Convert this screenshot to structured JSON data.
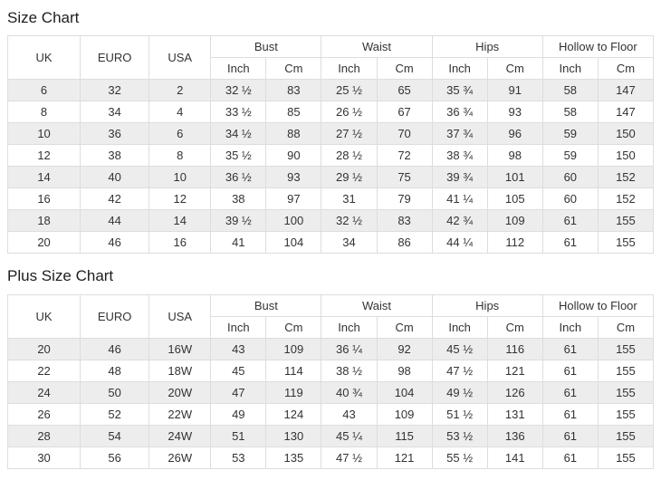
{
  "colors": {
    "stripe_row": "#ededed",
    "border": "#dddddd",
    "text": "#333333",
    "title_text": "#1d1d1d"
  },
  "headers": {
    "uk": "UK",
    "euro": "EURO",
    "usa": "USA",
    "groups": [
      "Bust",
      "Waist",
      "Hips",
      "Hollow to Floor"
    ],
    "units": [
      "Inch",
      "Cm"
    ]
  },
  "size_chart": {
    "title": "Size Chart",
    "rows": [
      [
        "6",
        "32",
        "2",
        "32 ½",
        "83",
        "25 ½",
        "65",
        "35 ¾",
        "91",
        "58",
        "147"
      ],
      [
        "8",
        "34",
        "4",
        "33 ½",
        "85",
        "26 ½",
        "67",
        "36 ¾",
        "93",
        "58",
        "147"
      ],
      [
        "10",
        "36",
        "6",
        "34 ½",
        "88",
        "27 ½",
        "70",
        "37 ¾",
        "96",
        "59",
        "150"
      ],
      [
        "12",
        "38",
        "8",
        "35 ½",
        "90",
        "28 ½",
        "72",
        "38 ¾",
        "98",
        "59",
        "150"
      ],
      [
        "14",
        "40",
        "10",
        "36 ½",
        "93",
        "29 ½",
        "75",
        "39 ¾",
        "101",
        "60",
        "152"
      ],
      [
        "16",
        "42",
        "12",
        "38",
        "97",
        "31",
        "79",
        "41 ¼",
        "105",
        "60",
        "152"
      ],
      [
        "18",
        "44",
        "14",
        "39 ½",
        "100",
        "32 ½",
        "83",
        "42 ¾",
        "109",
        "61",
        "155"
      ],
      [
        "20",
        "46",
        "16",
        "41",
        "104",
        "34",
        "86",
        "44 ¼",
        "112",
        "61",
        "155"
      ]
    ]
  },
  "plus_size_chart": {
    "title": "Plus Size Chart",
    "rows": [
      [
        "20",
        "46",
        "16W",
        "43",
        "109",
        "36 ¼",
        "92",
        "45 ½",
        "116",
        "61",
        "155"
      ],
      [
        "22",
        "48",
        "18W",
        "45",
        "114",
        "38 ½",
        "98",
        "47 ½",
        "121",
        "61",
        "155"
      ],
      [
        "24",
        "50",
        "20W",
        "47",
        "119",
        "40 ¾",
        "104",
        "49 ½",
        "126",
        "61",
        "155"
      ],
      [
        "26",
        "52",
        "22W",
        "49",
        "124",
        "43",
        "109",
        "51 ½",
        "131",
        "61",
        "155"
      ],
      [
        "28",
        "54",
        "24W",
        "51",
        "130",
        "45 ¼",
        "115",
        "53 ½",
        "136",
        "61",
        "155"
      ],
      [
        "30",
        "56",
        "26W",
        "53",
        "135",
        "47 ½",
        "121",
        "55 ½",
        "141",
        "61",
        "155"
      ]
    ]
  }
}
